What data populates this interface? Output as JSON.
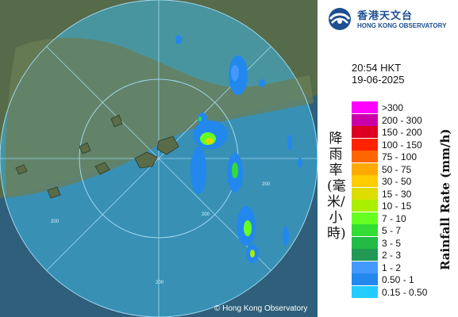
{
  "map": {
    "range_labels": [
      "200",
      "200",
      "200",
      "200"
    ],
    "copyright": "© Hong Kong Observatory"
  },
  "logo": {
    "name_cn": "香港天文台",
    "name_en": "HONG KONG OBSERVATORY",
    "color": "#1d4f91"
  },
  "timestamp": {
    "time": "20:54 HKT",
    "date": "19-06-2025"
  },
  "legend": {
    "title_cn": "降雨率(毫米/小時)",
    "title_en": "Rainfall Rate (mm/h)",
    "items": [
      {
        "label": ">300",
        "color": "#ff00ff"
      },
      {
        "label": "200 - 300",
        "color": "#cc00aa"
      },
      {
        "label": "150 - 200",
        "color": "#dd0022"
      },
      {
        "label": "100 - 150",
        "color": "#ff2200"
      },
      {
        "label": "75 - 100",
        "color": "#ff6600"
      },
      {
        "label": "50 - 75",
        "color": "#ffaa00"
      },
      {
        "label": "30 - 50",
        "color": "#ffcc00"
      },
      {
        "label": "15 - 30",
        "color": "#dddd00"
      },
      {
        "label": "10 - 15",
        "color": "#aaee00"
      },
      {
        "label": "7 - 10",
        "color": "#66ff22"
      },
      {
        "label": "5 - 7",
        "color": "#33dd33"
      },
      {
        "label": "3 - 5",
        "color": "#22bb44"
      },
      {
        "label": "2 - 3",
        "color": "#229955"
      },
      {
        "label": "1 - 2",
        "color": "#4499ff"
      },
      {
        "label": "0.50 - 1",
        "color": "#2288ee"
      },
      {
        "label": "0.15 - 0.50",
        "color": "#22ccff"
      }
    ]
  }
}
